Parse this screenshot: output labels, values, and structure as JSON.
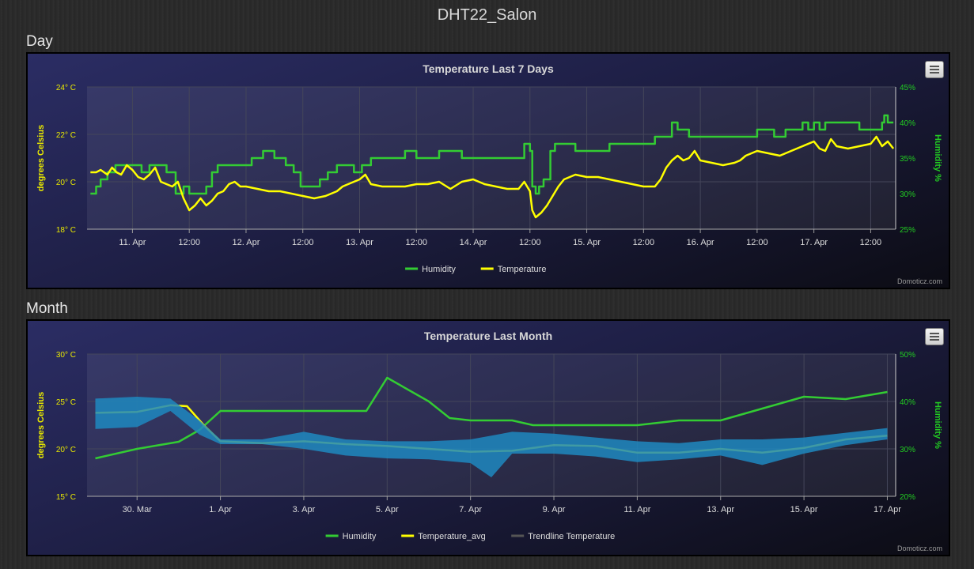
{
  "page": {
    "title": "DHT22_Salon"
  },
  "sections": {
    "day": "Day",
    "month": "Month"
  },
  "credits": "Domoticz.com",
  "colors": {
    "humidity": "#33cc33",
    "temperature": "#ffff00",
    "range": "#1e88c0",
    "trend": "#555555"
  },
  "chart_data": [
    {
      "type": "line",
      "title": "Temperature Last 7 Days",
      "ylabel_left": "degrees Celsius",
      "ylabel_right": "Humidity %",
      "ylim_left": [
        18,
        24
      ],
      "ylim_right": [
        25,
        45
      ],
      "yticks_left": [
        "18° C",
        "20° C",
        "22° C",
        "24° C"
      ],
      "yticks_right": [
        "25%",
        "30%",
        "35%",
        "40%",
        "45%"
      ],
      "xlim": [
        10.6,
        17.72
      ],
      "xticks": [
        {
          "x": 11.0,
          "label": "11. Apr"
        },
        {
          "x": 11.5,
          "label": "12:00"
        },
        {
          "x": 12.0,
          "label": "12. Apr"
        },
        {
          "x": 12.5,
          "label": "12:00"
        },
        {
          "x": 13.0,
          "label": "13. Apr"
        },
        {
          "x": 13.5,
          "label": "12:00"
        },
        {
          "x": 14.0,
          "label": "14. Apr"
        },
        {
          "x": 14.5,
          "label": "12:00"
        },
        {
          "x": 15.0,
          "label": "15. Apr"
        },
        {
          "x": 15.5,
          "label": "12:00"
        },
        {
          "x": 16.0,
          "label": "16. Apr"
        },
        {
          "x": 16.5,
          "label": "12:00"
        },
        {
          "x": 17.0,
          "label": "17. Apr"
        },
        {
          "x": 17.5,
          "label": "12:00"
        }
      ],
      "legend": [
        "Humidity",
        "Temperature"
      ],
      "series": [
        {
          "name": "Humidity",
          "axis": "right",
          "step": true,
          "x": [
            10.63,
            10.68,
            10.72,
            10.78,
            10.85,
            10.92,
            11.0,
            11.08,
            11.15,
            11.22,
            11.3,
            11.38,
            11.45,
            11.5,
            11.58,
            11.65,
            11.7,
            11.75,
            11.85,
            11.95,
            12.05,
            12.15,
            12.25,
            12.35,
            12.42,
            12.48,
            12.55,
            12.6,
            12.65,
            12.72,
            12.8,
            12.88,
            12.95,
            13.02,
            13.1,
            13.2,
            13.3,
            13.4,
            13.5,
            13.6,
            13.7,
            13.8,
            13.9,
            13.95,
            14.05,
            14.15,
            14.25,
            14.35,
            14.45,
            14.5,
            14.52,
            14.55,
            14.58,
            14.62,
            14.68,
            14.72,
            14.75,
            14.8,
            14.9,
            15.0,
            15.1,
            15.2,
            15.3,
            15.4,
            15.5,
            15.6,
            15.7,
            15.75,
            15.8,
            15.85,
            15.9,
            15.95,
            16.0,
            16.05,
            16.1,
            16.2,
            16.3,
            16.4,
            16.5,
            16.6,
            16.65,
            16.7,
            16.75,
            16.8,
            16.85,
            16.9,
            16.95,
            17.0,
            17.05,
            17.1,
            17.15,
            17.2,
            17.3,
            17.4,
            17.5,
            17.55,
            17.6,
            17.62,
            17.65,
            17.68,
            17.7
          ],
          "y": [
            30,
            31,
            32,
            33,
            34,
            34,
            34,
            33,
            34,
            34,
            33,
            30,
            31,
            30,
            30,
            31,
            33,
            34,
            34,
            34,
            35,
            36,
            35,
            34,
            33,
            31,
            31,
            31,
            32,
            33,
            34,
            34,
            33,
            34,
            35,
            35,
            35,
            36,
            35,
            35,
            36,
            36,
            35,
            35,
            35,
            35,
            35,
            35,
            37,
            36,
            31,
            30,
            31,
            32,
            36,
            37,
            37,
            37,
            36,
            36,
            36,
            37,
            37,
            37,
            37,
            38,
            38,
            40,
            39,
            39,
            38,
            38,
            38,
            38,
            38,
            38,
            38,
            38,
            39,
            39,
            38,
            38,
            39,
            39,
            39,
            40,
            39,
            40,
            39,
            40,
            40,
            40,
            40,
            39,
            39,
            39,
            40,
            41,
            40,
            40,
            40
          ]
        },
        {
          "name": "Temperature",
          "axis": "left",
          "x": [
            10.63,
            10.68,
            10.72,
            10.78,
            10.82,
            10.86,
            10.9,
            10.95,
            11.0,
            11.05,
            11.1,
            11.15,
            11.2,
            11.25,
            11.3,
            11.35,
            11.4,
            11.45,
            11.5,
            11.55,
            11.6,
            11.65,
            11.7,
            11.75,
            11.8,
            11.85,
            11.9,
            11.95,
            12.0,
            12.1,
            12.2,
            12.3,
            12.4,
            12.5,
            12.6,
            12.7,
            12.8,
            12.85,
            12.9,
            12.95,
            13.0,
            13.05,
            13.1,
            13.2,
            13.3,
            13.4,
            13.5,
            13.6,
            13.7,
            13.8,
            13.9,
            14.0,
            14.1,
            14.2,
            14.3,
            14.4,
            14.45,
            14.5,
            14.52,
            14.55,
            14.6,
            14.65,
            14.7,
            14.75,
            14.8,
            14.9,
            15.0,
            15.1,
            15.2,
            15.3,
            15.4,
            15.5,
            15.6,
            15.65,
            15.7,
            15.75,
            15.8,
            15.85,
            15.9,
            15.95,
            16.0,
            16.1,
            16.2,
            16.3,
            16.35,
            16.4,
            16.5,
            16.6,
            16.7,
            16.8,
            16.9,
            17.0,
            17.05,
            17.1,
            17.15,
            17.2,
            17.3,
            17.4,
            17.5,
            17.55,
            17.6,
            17.65,
            17.7
          ],
          "y": [
            20.4,
            20.4,
            20.5,
            20.3,
            20.6,
            20.4,
            20.3,
            20.7,
            20.5,
            20.2,
            20.1,
            20.3,
            20.6,
            20.0,
            19.9,
            19.8,
            20.0,
            19.3,
            18.8,
            19.0,
            19.3,
            19.0,
            19.2,
            19.5,
            19.6,
            19.9,
            20.0,
            19.8,
            19.8,
            19.7,
            19.6,
            19.6,
            19.5,
            19.4,
            19.3,
            19.4,
            19.6,
            19.8,
            19.9,
            20.0,
            20.1,
            20.3,
            19.9,
            19.8,
            19.8,
            19.8,
            19.9,
            19.9,
            20.0,
            19.7,
            20.0,
            20.1,
            19.9,
            19.8,
            19.7,
            19.7,
            20.0,
            19.6,
            18.8,
            18.5,
            18.7,
            19.0,
            19.4,
            19.8,
            20.1,
            20.3,
            20.2,
            20.2,
            20.1,
            20.0,
            19.9,
            19.8,
            19.8,
            20.1,
            20.6,
            20.9,
            21.1,
            20.9,
            21.0,
            21.3,
            20.9,
            20.8,
            20.7,
            20.8,
            20.9,
            21.1,
            21.3,
            21.2,
            21.1,
            21.3,
            21.5,
            21.7,
            21.4,
            21.3,
            21.8,
            21.5,
            21.4,
            21.5,
            21.6,
            21.9,
            21.5,
            21.7,
            21.4
          ]
        }
      ]
    },
    {
      "type": "line",
      "title": "Temperature Last Month",
      "ylabel_left": "degrees Celsius",
      "ylabel_right": "Humidity %",
      "ylim_left": [
        15,
        30
      ],
      "ylim_right": [
        20,
        50
      ],
      "yticks_left": [
        "15° C",
        "20° C",
        "25° C",
        "30° C"
      ],
      "yticks_right": [
        "20%",
        "30%",
        "40%",
        "50%"
      ],
      "xlim": [
        28.8,
        48.2
      ],
      "xticks": [
        {
          "x": 30,
          "label": "30. Mar"
        },
        {
          "x": 32,
          "label": "1. Apr"
        },
        {
          "x": 34,
          "label": "3. Apr"
        },
        {
          "x": 36,
          "label": "5. Apr"
        },
        {
          "x": 38,
          "label": "7. Apr"
        },
        {
          "x": 40,
          "label": "9. Apr"
        },
        {
          "x": 42,
          "label": "11. Apr"
        },
        {
          "x": 44,
          "label": "13. Apr"
        },
        {
          "x": 46,
          "label": "15. Apr"
        },
        {
          "x": 48,
          "label": "17. Apr"
        }
      ],
      "legend": [
        "Humidity",
        "Temperature_avg",
        "Trendline Temperature"
      ],
      "series": [
        {
          "name": "Humidity",
          "axis": "right",
          "x": [
            29,
            30,
            31,
            31.5,
            32,
            33,
            34,
            35,
            35.5,
            36,
            37,
            37.5,
            38,
            39,
            39.5,
            40,
            41,
            42,
            43,
            44,
            45,
            46,
            47,
            48
          ],
          "y": [
            28,
            30,
            31.5,
            34,
            38,
            38,
            38,
            38,
            38,
            45,
            40,
            36.5,
            36,
            36,
            35,
            35,
            35,
            35,
            36,
            36,
            38.5,
            41,
            40.5,
            42
          ]
        },
        {
          "name": "Temperature_avg",
          "axis": "left",
          "x": [
            29,
            30,
            30.8,
            31.2,
            31.6,
            32,
            33,
            34,
            35,
            36,
            37,
            38,
            39,
            40,
            41,
            42,
            43,
            44,
            45,
            46,
            47,
            48
          ],
          "y": [
            23.8,
            23.9,
            24.6,
            24.5,
            22.5,
            20.8,
            20.6,
            20.8,
            20.5,
            20.3,
            20.0,
            19.7,
            19.8,
            20.4,
            20.3,
            19.6,
            19.6,
            20.0,
            19.6,
            20.1,
            21.0,
            21.4
          ]
        },
        {
          "name": "Range",
          "axis": "left",
          "type": "area",
          "x": [
            29,
            30,
            30.8,
            31.5,
            32,
            33,
            34,
            35,
            36,
            37,
            38,
            38.5,
            39,
            40,
            41,
            42,
            43,
            44,
            45,
            46,
            47,
            48
          ],
          "high": [
            25.3,
            25.5,
            25.3,
            23.0,
            21.0,
            21.0,
            21.8,
            21.0,
            20.8,
            20.8,
            21.0,
            21.4,
            21.8,
            21.6,
            21.2,
            20.8,
            20.6,
            21.0,
            21.0,
            21.2,
            21.7,
            22.2
          ],
          "low": [
            22.1,
            22.3,
            24.0,
            21.5,
            20.5,
            20.5,
            20.0,
            19.3,
            19.0,
            18.9,
            18.5,
            17.0,
            19.5,
            19.5,
            19.2,
            18.6,
            18.9,
            19.3,
            18.3,
            19.5,
            20.4,
            21.0
          ]
        },
        {
          "name": "Trendline Temperature",
          "axis": "left",
          "hidden": true,
          "x": [],
          "y": []
        }
      ]
    }
  ]
}
